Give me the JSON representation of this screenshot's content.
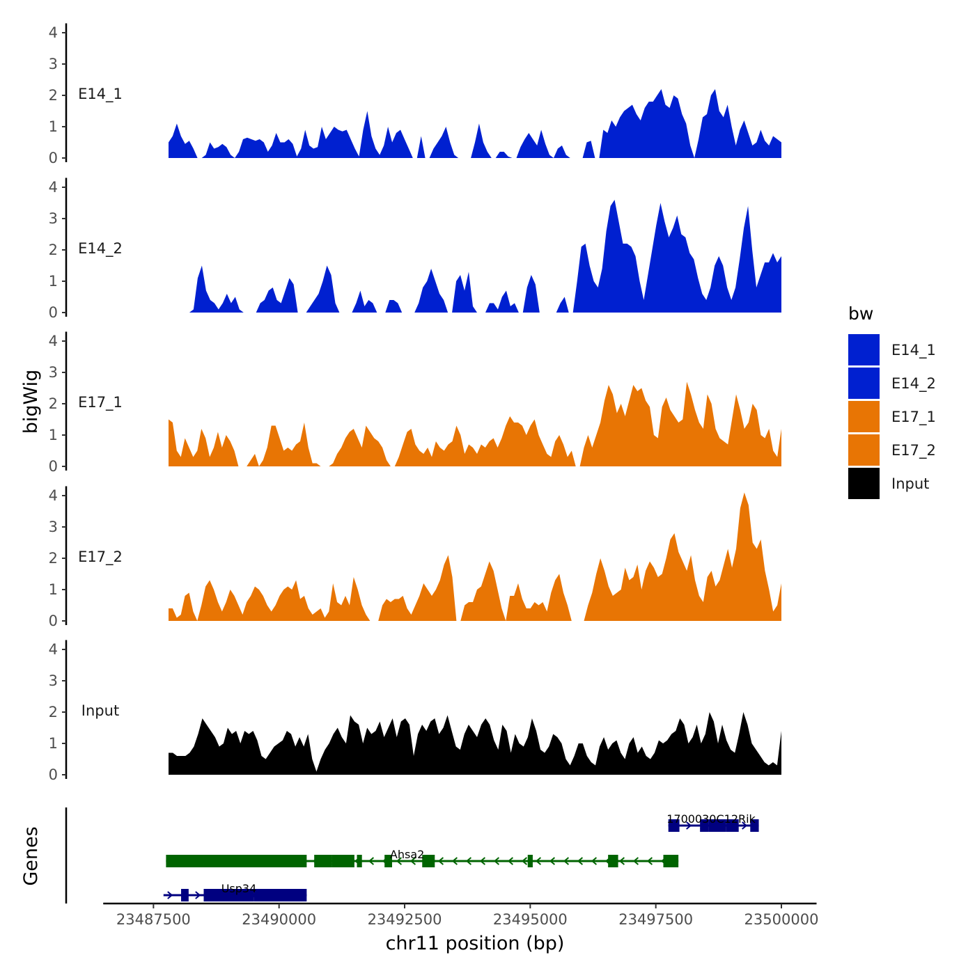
{
  "chart_data": {
    "type": "area",
    "title": "",
    "xlabel": "chr11 position (bp)",
    "ylabel": "bigWig",
    "genes_label": "Genes",
    "xlim": [
      23487800,
      23500000
    ],
    "x_axis_range": [
      23486500,
      23500700
    ],
    "ylim": [
      0,
      4.3
    ],
    "yticks": [
      "0",
      "1",
      "2",
      "3",
      "4"
    ],
    "xticks": [
      {
        "value": 23487500,
        "label": "23487500"
      },
      {
        "value": 23490000,
        "label": "23490000"
      },
      {
        "value": 23492500,
        "label": "23492500"
      },
      {
        "value": 23495000,
        "label": "23495000"
      },
      {
        "value": 23497500,
        "label": "23497500"
      },
      {
        "value": 23500000,
        "label": "23500000"
      }
    ],
    "legend": {
      "title": "bw",
      "entries": [
        {
          "name": "E14_1",
          "color": "#0020D0"
        },
        {
          "name": "E14_2",
          "color": "#0020D0"
        },
        {
          "name": "E17_1",
          "color": "#E87504"
        },
        {
          "name": "E17_2",
          "color": "#E87504"
        },
        {
          "name": "Input",
          "color": "#000000"
        }
      ]
    },
    "series": [
      {
        "name": "E14_1",
        "color": "#0020D0",
        "values": [
          0.5,
          0.7,
          1.1,
          0.7,
          0.45,
          0.55,
          0.3,
          0,
          0,
          0.1,
          0.5,
          0.3,
          0.35,
          0.45,
          0.35,
          0.1,
          0,
          0.2,
          0.6,
          0.65,
          0.6,
          0.55,
          0.6,
          0.5,
          0.2,
          0.4,
          0.8,
          0.5,
          0.5,
          0.6,
          0.45,
          0.05,
          0.3,
          0.9,
          0.4,
          0.3,
          0.35,
          1.0,
          0.6,
          0.8,
          1.0,
          0.9,
          0.85,
          0.9,
          0.6,
          0.3,
          0.05,
          0.9,
          1.5,
          0.7,
          0.3,
          0.1,
          0.4,
          1.0,
          0.5,
          0.8,
          0.9,
          0.6,
          0.3,
          0,
          0,
          0.7,
          0,
          0,
          0.3,
          0.5,
          0.7,
          1.0,
          0.5,
          0.1,
          0,
          0,
          0,
          0,
          0.5,
          1.1,
          0.5,
          0.2,
          0,
          0,
          0.2,
          0.2,
          0.05,
          0,
          0,
          0.35,
          0.6,
          0.8,
          0.6,
          0.4,
          0.9,
          0.45,
          0.1,
          0,
          0.3,
          0.4,
          0.1,
          0,
          0,
          0,
          0,
          0.5,
          0.55,
          0,
          0,
          0.9,
          0.8,
          1.2,
          1.0,
          1.3,
          1.5,
          1.6,
          1.7,
          1.4,
          1.2,
          1.6,
          1.8,
          1.8,
          2.0,
          2.2,
          1.7,
          1.6,
          2.0,
          1.9,
          1.4,
          1.1,
          0.4,
          0,
          0.6,
          1.3,
          1.4,
          2.0,
          2.2,
          1.5,
          1.3,
          1.7,
          1.0,
          0.4,
          0.9,
          1.2,
          0.8,
          0.4,
          0.5,
          0.9,
          0.55,
          0.4,
          0.7,
          0.6,
          0.5
        ]
      },
      {
        "name": "E14_2",
        "color": "#0020D0",
        "values": [
          0,
          0,
          0,
          0,
          0,
          0,
          0.1,
          1.1,
          1.5,
          0.7,
          0.4,
          0.3,
          0.1,
          0.3,
          0.6,
          0.3,
          0.5,
          0.1,
          0,
          0,
          0,
          0,
          0.3,
          0.4,
          0.7,
          0.8,
          0.4,
          0.3,
          0.7,
          1.1,
          0.9,
          0,
          0,
          0,
          0.2,
          0.4,
          0.6,
          1.0,
          1.5,
          1.2,
          0.3,
          0,
          0,
          0,
          0,
          0.3,
          0.7,
          0.2,
          0.4,
          0.3,
          0,
          0,
          0,
          0.4,
          0.4,
          0.3,
          0,
          0,
          0,
          0,
          0.3,
          0.8,
          1.0,
          1.4,
          1.0,
          0.6,
          0.4,
          0,
          0,
          1.0,
          1.2,
          0.7,
          1.3,
          0.2,
          0,
          0,
          0,
          0.3,
          0.3,
          0.1,
          0.5,
          0.7,
          0.2,
          0.3,
          0,
          0,
          0.8,
          1.2,
          0.9,
          0,
          0,
          0,
          0,
          0,
          0.3,
          0.5,
          0,
          0,
          1.0,
          2.1,
          2.2,
          1.5,
          1.0,
          0.8,
          1.4,
          2.6,
          3.4,
          3.6,
          2.9,
          2.2,
          2.2,
          2.1,
          1.8,
          1.0,
          0.4,
          1.2,
          2.0,
          2.8,
          3.5,
          2.9,
          2.4,
          2.7,
          3.1,
          2.5,
          2.4,
          1.9,
          1.7,
          1.1,
          0.6,
          0.4,
          0.8,
          1.5,
          1.8,
          1.5,
          0.8,
          0.4,
          0.8,
          1.7,
          2.7,
          3.4,
          2.0,
          0.8,
          1.2,
          1.6,
          1.6,
          1.9,
          1.6,
          1.8
        ]
      },
      {
        "name": "E17_1",
        "color": "#E87504",
        "values": [
          1.5,
          1.4,
          0.5,
          0.3,
          0.9,
          0.6,
          0.3,
          0.5,
          1.2,
          0.9,
          0.3,
          0.6,
          1.1,
          0.6,
          1.0,
          0.8,
          0.5,
          0,
          0,
          0,
          0.2,
          0.4,
          0,
          0.2,
          0.6,
          1.3,
          1.3,
          0.9,
          0.5,
          0.6,
          0.5,
          0.7,
          0.8,
          1.4,
          0.6,
          0.1,
          0.1,
          0,
          0,
          0,
          0.1,
          0.4,
          0.6,
          0.9,
          1.1,
          1.2,
          0.9,
          0.6,
          1.3,
          1.1,
          0.9,
          0.8,
          0.6,
          0.2,
          0,
          0,
          0.3,
          0.7,
          1.1,
          1.2,
          0.7,
          0.5,
          0.4,
          0.6,
          0.3,
          0.8,
          0.6,
          0.5,
          0.7,
          0.8,
          1.3,
          1.0,
          0.4,
          0.7,
          0.6,
          0.4,
          0.7,
          0.6,
          0.8,
          0.9,
          0.6,
          0.9,
          1.3,
          1.6,
          1.4,
          1.4,
          1.3,
          1.0,
          1.3,
          1.5,
          1.0,
          0.7,
          0.4,
          0.3,
          0.8,
          1.0,
          0.7,
          0.3,
          0.5,
          0,
          0,
          0.6,
          1.0,
          0.6,
          1.0,
          1.4,
          2.1,
          2.6,
          2.3,
          1.7,
          2.0,
          1.6,
          2.1,
          2.6,
          2.4,
          2.5,
          2.1,
          1.9,
          1.0,
          0.9,
          1.9,
          2.2,
          1.8,
          1.6,
          1.4,
          1.5,
          2.7,
          2.3,
          1.8,
          1.4,
          1.2,
          2.3,
          2.0,
          1.2,
          0.9,
          0.8,
          0.7,
          1.5,
          2.3,
          1.8,
          1.2,
          1.4,
          2.0,
          1.8,
          1.0,
          0.9,
          1.2,
          0.5,
          0.3,
          1.2
        ]
      },
      {
        "name": "E17_2",
        "color": "#E87504",
        "values": [
          0.4,
          0.4,
          0.1,
          0.2,
          0.8,
          0.9,
          0.3,
          0,
          0.5,
          1.1,
          1.3,
          1.0,
          0.6,
          0.3,
          0.6,
          1.0,
          0.8,
          0.5,
          0.2,
          0.6,
          0.8,
          1.1,
          1.0,
          0.8,
          0.5,
          0.3,
          0.5,
          0.8,
          1.0,
          1.1,
          1.0,
          1.3,
          0.7,
          0.8,
          0.4,
          0.2,
          0.3,
          0.4,
          0.1,
          0.3,
          1.2,
          0.6,
          0.5,
          0.8,
          0.5,
          1.4,
          1.0,
          0.5,
          0.2,
          0,
          0,
          0,
          0.5,
          0.7,
          0.6,
          0.7,
          0.7,
          0.8,
          0.4,
          0.2,
          0.5,
          0.8,
          1.2,
          1.0,
          0.8,
          1.0,
          1.3,
          1.8,
          2.1,
          1.4,
          0,
          0,
          0.5,
          0.6,
          0.6,
          1.0,
          1.1,
          1.5,
          1.9,
          1.6,
          1.0,
          0.4,
          0,
          0.8,
          0.8,
          1.2,
          0.7,
          0.4,
          0.4,
          0.6,
          0.5,
          0.6,
          0.3,
          0.9,
          1.3,
          1.5,
          0.9,
          0.5,
          0,
          0,
          0,
          0,
          0.5,
          0.9,
          1.5,
          2.0,
          1.6,
          1.1,
          0.8,
          0.9,
          1.0,
          1.7,
          1.3,
          1.4,
          1.8,
          1.0,
          1.6,
          1.9,
          1.7,
          1.4,
          1.5,
          2.0,
          2.6,
          2.8,
          2.2,
          1.9,
          1.6,
          2.1,
          1.3,
          0.8,
          0.6,
          1.4,
          1.6,
          1.1,
          1.3,
          1.8,
          2.3,
          1.7,
          2.3,
          3.6,
          4.1,
          3.7,
          2.5,
          2.3,
          2.6,
          1.6,
          1.0,
          0.3,
          0.5,
          1.2
        ]
      },
      {
        "name": "Input",
        "color": "#000000",
        "values": [
          0.7,
          0.7,
          0.6,
          0.6,
          0.6,
          0.7,
          0.9,
          1.3,
          1.8,
          1.6,
          1.4,
          1.2,
          0.9,
          1.0,
          1.5,
          1.3,
          1.4,
          1.0,
          1.4,
          1.3,
          1.4,
          1.1,
          0.6,
          0.5,
          0.7,
          0.9,
          1.0,
          1.1,
          1.4,
          1.3,
          0.9,
          1.2,
          0.9,
          1.3,
          0.5,
          0.1,
          0.5,
          0.8,
          1.0,
          1.3,
          1.5,
          1.2,
          1.0,
          1.9,
          1.7,
          1.6,
          1.0,
          1.5,
          1.3,
          1.4,
          1.7,
          1.2,
          1.5,
          1.8,
          1.2,
          1.7,
          1.8,
          1.6,
          0.6,
          1.3,
          1.6,
          1.4,
          1.7,
          1.8,
          1.3,
          1.5,
          1.9,
          1.4,
          0.9,
          0.8,
          1.3,
          1.6,
          1.4,
          1.2,
          1.6,
          1.8,
          1.6,
          1.1,
          0.8,
          1.6,
          1.4,
          0.7,
          1.3,
          1.0,
          0.9,
          1.2,
          1.8,
          1.4,
          0.8,
          0.7,
          0.9,
          1.3,
          1.2,
          1.0,
          0.5,
          0.3,
          0.6,
          1.0,
          1.0,
          0.6,
          0.4,
          0.3,
          0.9,
          1.2,
          0.8,
          1.0,
          1.1,
          0.7,
          0.5,
          1.0,
          1.2,
          0.7,
          0.9,
          0.6,
          0.5,
          0.7,
          1.1,
          1.0,
          1.1,
          1.3,
          1.4,
          1.8,
          1.6,
          1.0,
          1.2,
          1.6,
          1.0,
          1.3,
          2.0,
          1.7,
          1.0,
          1.6,
          1.1,
          0.8,
          0.7,
          1.3,
          2.0,
          1.6,
          1.0,
          0.8,
          0.6,
          0.4,
          0.3,
          0.4,
          0.3,
          1.4
        ]
      }
    ],
    "genes": [
      {
        "name": "1700030C12Rik",
        "color": "#000080",
        "strand": "+",
        "row": 1,
        "start": 23497750,
        "end": 23499550,
        "label_pos": 23498600,
        "exons": [
          [
            23497750,
            23497970
          ],
          [
            23498380,
            23498550
          ],
          [
            23498550,
            23498900
          ],
          [
            23498900,
            23499150
          ],
          [
            23499380,
            23499550
          ]
        ]
      },
      {
        "name": "Ahsa2",
        "color": "#006400",
        "strand": "-",
        "row": 2,
        "start": 23487750,
        "end": 23497950,
        "label_pos": 23492550,
        "exons": [
          [
            23487750,
            23488500
          ],
          [
            23488500,
            23490550
          ],
          [
            23490700,
            23491050
          ],
          [
            23491050,
            23491500
          ],
          [
            23491550,
            23491650
          ],
          [
            23492100,
            23492250
          ],
          [
            23492850,
            23493100
          ],
          [
            23494950,
            23495050
          ],
          [
            23496550,
            23496750
          ],
          [
            23497650,
            23497950
          ]
        ]
      },
      {
        "name": "Usp34",
        "color": "#000080",
        "strand": "+",
        "row": 3,
        "start": 23487700,
        "end": 23490550,
        "label_pos": 23489200,
        "exons": [
          [
            23488050,
            23488200
          ],
          [
            23488500,
            23489500
          ],
          [
            23489500,
            23490550
          ]
        ]
      }
    ]
  }
}
